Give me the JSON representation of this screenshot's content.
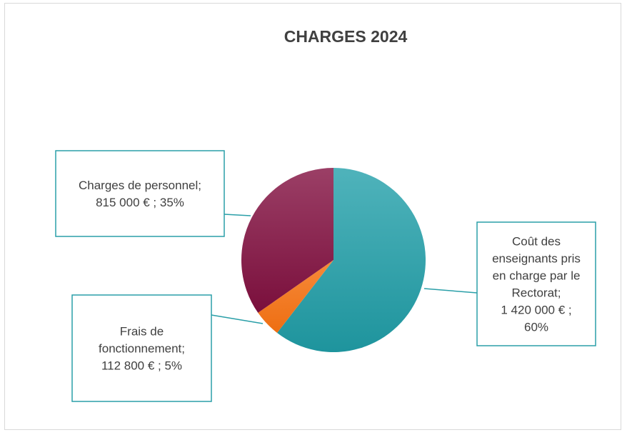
{
  "chart_data": {
    "type": "pie",
    "title": "CHARGES 2024",
    "slices": [
      {
        "label": "Coût des enseignants pris en charge par le Rectorat",
        "value": 1420000,
        "percent": 60,
        "color": "#2a9fa8"
      },
      {
        "label": "Frais de fonctionnement",
        "value": 112800,
        "percent": 5,
        "color": "#f47d22"
      },
      {
        "label": "Charges de personnel",
        "value": 815000,
        "percent": 35,
        "color": "#8b1a4a"
      }
    ],
    "data_labels": [
      {
        "lines": [
          "Coût des",
          "enseignants pris",
          "en charge par le",
          "Rectorat;",
          "1 420 000 € ;",
          "60%"
        ]
      },
      {
        "lines": [
          "Frais de",
          "fonctionnement;",
          "112 800 € ; 5%"
        ]
      },
      {
        "lines": [
          "Charges de personnel;",
          "815 000 € ; 35%"
        ]
      }
    ],
    "callout_border_color": "#2a9fa8"
  }
}
